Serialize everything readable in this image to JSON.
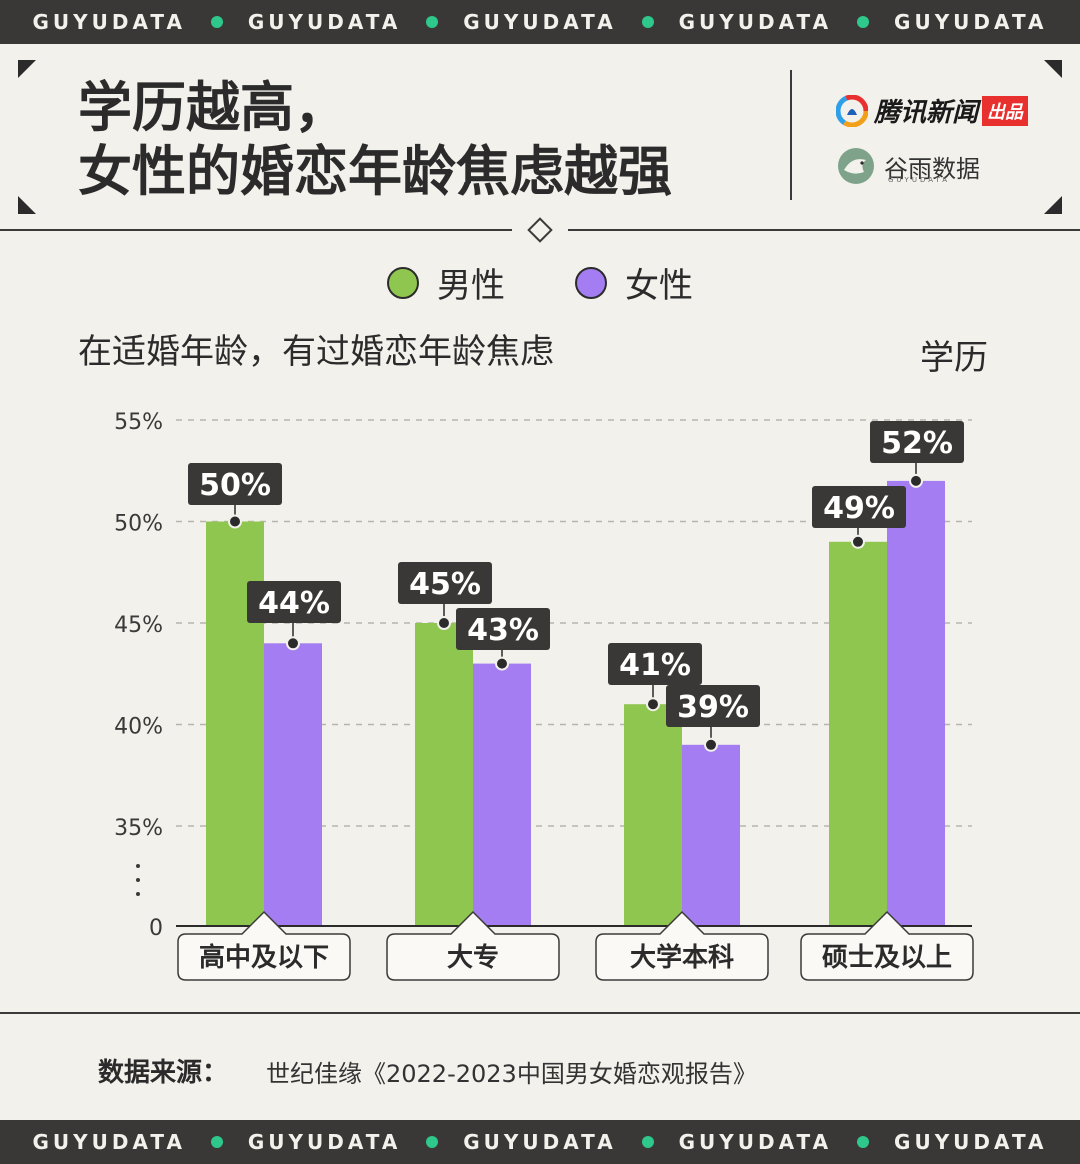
{
  "brand_strip": [
    "GUYUDATA",
    "GUYUDATA",
    "GUYUDATA",
    "GUYUDATA",
    "GUYUDATA"
  ],
  "title_line1": "学历越高，",
  "title_line2": "女性的婚恋年龄焦虑越强",
  "logos": {
    "tencent": "腾讯新闻",
    "tencent_badge": "出品",
    "guyu": "谷雨数据",
    "guyu_sub": "GUYUDATA"
  },
  "colors": {
    "male": "#8fc650",
    "female": "#a37df1",
    "dark": "#3a3836",
    "accent": "#2ec88c"
  },
  "chart_data": {
    "type": "bar",
    "title": "学历越高，女性的婚恋年龄焦虑越强",
    "subtitle": "在适婚年龄，有过婚恋年龄焦虑",
    "xlabel": "学历",
    "categories": [
      "高中及以下",
      "大专",
      "大学本科",
      "硕士及以上"
    ],
    "series": [
      {
        "name": "男性",
        "values": [
          50,
          45,
          41,
          49
        ]
      },
      {
        "name": "女性",
        "values": [
          44,
          43,
          39,
          52
        ]
      }
    ],
    "value_labels": [
      [
        "50%",
        "45%",
        "41%",
        "49%"
      ],
      [
        "44%",
        "43%",
        "39%",
        "52%"
      ]
    ],
    "yticks": [
      "0",
      "35%",
      "40%",
      "45%",
      "50%",
      "55%"
    ],
    "ylim": [
      30,
      55
    ],
    "axis_break": true,
    "grid": true,
    "legend_position": "top-center"
  },
  "source_label": "数据来源：",
  "source_text": "世纪佳缘《2022-2023中国男女婚恋观报告》"
}
